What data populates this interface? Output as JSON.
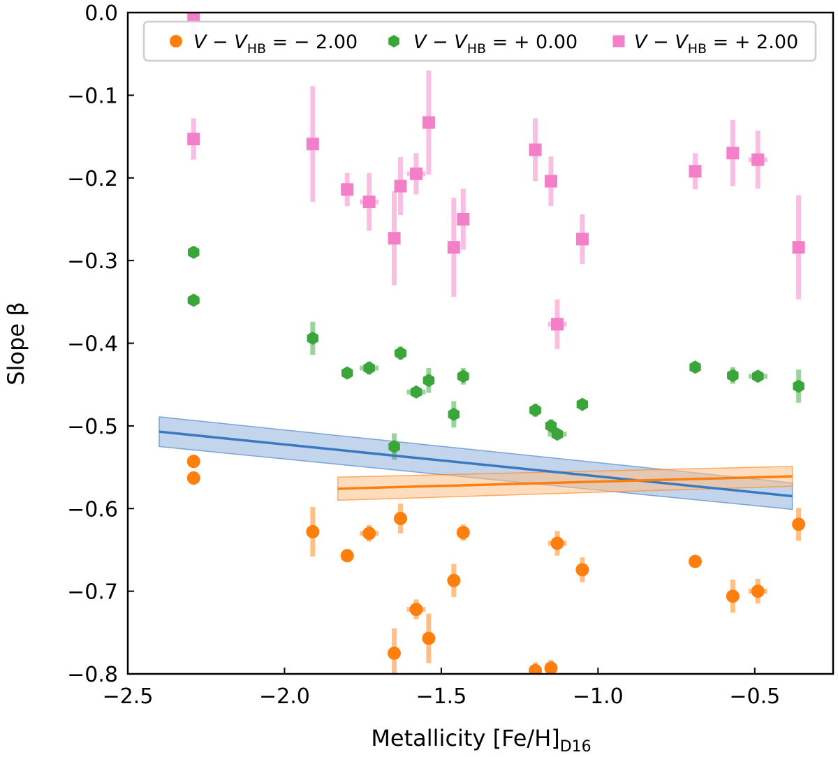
{
  "chart_data": {
    "type": "scatter",
    "title": "",
    "xlabel": "Metallicity [Fe/H]",
    "xlabel_sub": "D16",
    "ylabel": "Slope β",
    "xlim": [
      -2.5,
      -0.25
    ],
    "ylim": [
      -0.8,
      0.0
    ],
    "xticks": [
      -2.5,
      -2.0,
      -1.5,
      -1.0,
      -0.5
    ],
    "xtick_labels": [
      "−2.5",
      "−2.0",
      "−1.5",
      "−1.0",
      "−0.5"
    ],
    "yticks": [
      0.0,
      -0.1,
      -0.2,
      -0.3,
      -0.4,
      -0.5,
      -0.6,
      -0.7,
      -0.8
    ],
    "ytick_labels": [
      "0.0",
      "−0.1",
      "−0.2",
      "−0.3",
      "−0.4",
      "−0.5",
      "−0.6",
      "−0.7",
      "−0.8"
    ],
    "legend_position": "top",
    "series": [
      {
        "name": "V − V_HB = − 2.00",
        "legend_main": "V − V",
        "legend_sub": "HB",
        "legend_rest": " = − 2.00",
        "marker": "circle",
        "color": "#ff7f0e",
        "points": [
          {
            "x": -2.29,
            "y": -0.543,
            "yerr": 0.008,
            "xerr": 0.02
          },
          {
            "x": -2.29,
            "y": -0.563,
            "yerr": 0.008,
            "xerr": 0.0
          },
          {
            "x": -1.91,
            "y": -0.628,
            "yerr": 0.03,
            "xerr": 0.0
          },
          {
            "x": -1.8,
            "y": -0.657,
            "yerr": 0.008,
            "xerr": 0.0
          },
          {
            "x": -1.73,
            "y": -0.63,
            "yerr": 0.01,
            "xerr": 0.03
          },
          {
            "x": -1.65,
            "y": -0.775,
            "yerr": 0.03,
            "xerr": 0.0
          },
          {
            "x": -1.63,
            "y": -0.612,
            "yerr": 0.018,
            "xerr": 0.02
          },
          {
            "x": -1.58,
            "y": -0.722,
            "yerr": 0.012,
            "xerr": 0.03
          },
          {
            "x": -1.54,
            "y": -0.757,
            "yerr": 0.03,
            "xerr": 0.0
          },
          {
            "x": -1.46,
            "y": -0.687,
            "yerr": 0.02,
            "xerr": 0.0
          },
          {
            "x": -1.43,
            "y": -0.629,
            "yerr": 0.01,
            "xerr": 0.02
          },
          {
            "x": -1.2,
            "y": -0.796,
            "yerr": 0.01,
            "xerr": 0.02
          },
          {
            "x": -1.15,
            "y": -0.793,
            "yerr": 0.01,
            "xerr": 0.0
          },
          {
            "x": -1.13,
            "y": -0.642,
            "yerr": 0.015,
            "xerr": 0.03
          },
          {
            "x": -1.05,
            "y": -0.674,
            "yerr": 0.015,
            "xerr": 0.0
          },
          {
            "x": -0.69,
            "y": -0.664,
            "yerr": 0.006,
            "xerr": 0.0
          },
          {
            "x": -0.57,
            "y": -0.706,
            "yerr": 0.02,
            "xerr": 0.0
          },
          {
            "x": -0.49,
            "y": -0.7,
            "yerr": 0.015,
            "xerr": 0.03
          },
          {
            "x": -0.36,
            "y": -0.619,
            "yerr": 0.02,
            "xerr": 0.0
          }
        ]
      },
      {
        "name": "V − V_HB = + 0.00",
        "legend_main": "V − V",
        "legend_sub": "HB",
        "legend_rest": " = + 0.00",
        "marker": "hexagon",
        "color": "#3aa63a",
        "points": [
          {
            "x": -2.29,
            "y": -0.29,
            "yerr": 0.006,
            "xerr": 0.0
          },
          {
            "x": -2.29,
            "y": -0.348,
            "yerr": 0.006,
            "xerr": 0.02
          },
          {
            "x": -1.91,
            "y": -0.394,
            "yerr": 0.02,
            "xerr": 0.0
          },
          {
            "x": -1.8,
            "y": -0.436,
            "yerr": 0.006,
            "xerr": 0.0
          },
          {
            "x": -1.73,
            "y": -0.43,
            "yerr": 0.008,
            "xerr": 0.03
          },
          {
            "x": -1.65,
            "y": -0.525,
            "yerr": 0.016,
            "xerr": 0.0
          },
          {
            "x": -1.63,
            "y": -0.412,
            "yerr": 0.008,
            "xerr": 0.02
          },
          {
            "x": -1.58,
            "y": -0.459,
            "yerr": 0.006,
            "xerr": 0.03
          },
          {
            "x": -1.54,
            "y": -0.445,
            "yerr": 0.015,
            "xerr": 0.0
          },
          {
            "x": -1.46,
            "y": -0.486,
            "yerr": 0.016,
            "xerr": 0.0
          },
          {
            "x": -1.43,
            "y": -0.44,
            "yerr": 0.01,
            "xerr": 0.02
          },
          {
            "x": -1.2,
            "y": -0.481,
            "yerr": 0.008,
            "xerr": 0.02
          },
          {
            "x": -1.15,
            "y": -0.5,
            "yerr": 0.008,
            "xerr": 0.0
          },
          {
            "x": -1.13,
            "y": -0.51,
            "yerr": 0.006,
            "xerr": 0.03
          },
          {
            "x": -1.05,
            "y": -0.474,
            "yerr": 0.006,
            "xerr": 0.0
          },
          {
            "x": -0.69,
            "y": -0.429,
            "yerr": 0.006,
            "xerr": 0.0
          },
          {
            "x": -0.57,
            "y": -0.439,
            "yerr": 0.01,
            "xerr": 0.0
          },
          {
            "x": -0.49,
            "y": -0.44,
            "yerr": 0.006,
            "xerr": 0.03
          },
          {
            "x": -0.36,
            "y": -0.452,
            "yerr": 0.02,
            "xerr": 0.0
          }
        ]
      },
      {
        "name": "V − V_HB = + 2.00",
        "legend_main": "V − V",
        "legend_sub": "HB",
        "legend_rest": " = + 2.00",
        "marker": "square",
        "color": "#f27fc7",
        "points": [
          {
            "x": -2.29,
            "y": -0.003,
            "yerr": 0.03,
            "xerr": 0.0
          },
          {
            "x": -2.29,
            "y": -0.153,
            "yerr": 0.025,
            "xerr": 0.02
          },
          {
            "x": -1.91,
            "y": -0.159,
            "yerr": 0.07,
            "xerr": 0.0
          },
          {
            "x": -1.8,
            "y": -0.214,
            "yerr": 0.02,
            "xerr": 0.0
          },
          {
            "x": -1.73,
            "y": -0.229,
            "yerr": 0.035,
            "xerr": 0.03
          },
          {
            "x": -1.65,
            "y": -0.273,
            "yerr": 0.057,
            "xerr": 0.0
          },
          {
            "x": -1.63,
            "y": -0.21,
            "yerr": 0.035,
            "xerr": 0.02
          },
          {
            "x": -1.58,
            "y": -0.195,
            "yerr": 0.025,
            "xerr": 0.03
          },
          {
            "x": -1.54,
            "y": -0.133,
            "yerr": 0.063,
            "xerr": 0.0
          },
          {
            "x": -1.46,
            "y": -0.284,
            "yerr": 0.06,
            "xerr": 0.0
          },
          {
            "x": -1.43,
            "y": -0.25,
            "yerr": 0.037,
            "xerr": 0.02
          },
          {
            "x": -1.2,
            "y": -0.166,
            "yerr": 0.038,
            "xerr": 0.02
          },
          {
            "x": -1.15,
            "y": -0.204,
            "yerr": 0.03,
            "xerr": 0.0
          },
          {
            "x": -1.13,
            "y": -0.377,
            "yerr": 0.03,
            "xerr": 0.03
          },
          {
            "x": -1.05,
            "y": -0.274,
            "yerr": 0.03,
            "xerr": 0.0
          },
          {
            "x": -0.69,
            "y": -0.192,
            "yerr": 0.022,
            "xerr": 0.0
          },
          {
            "x": -0.57,
            "y": -0.17,
            "yerr": 0.04,
            "xerr": 0.0
          },
          {
            "x": -0.49,
            "y": -0.178,
            "yerr": 0.035,
            "xerr": 0.03
          },
          {
            "x": -0.36,
            "y": -0.284,
            "yerr": 0.063,
            "xerr": 0.0
          }
        ]
      }
    ],
    "fit_lines": [
      {
        "name": "blue-fit",
        "color": "#3a78c0",
        "band_color": "#8fb3dc",
        "x": [
          -2.4,
          -0.38
        ],
        "y": [
          -0.507,
          -0.585
        ],
        "band_halfwidth": [
          0.018,
          0.016
        ]
      },
      {
        "name": "orange-fit",
        "color": "#ff7f0e",
        "band_color": "#ffbf86",
        "x": [
          -1.83,
          -0.38
        ],
        "y": [
          -0.576,
          -0.561
        ],
        "band_halfwidth": [
          0.014,
          0.012
        ]
      }
    ]
  }
}
